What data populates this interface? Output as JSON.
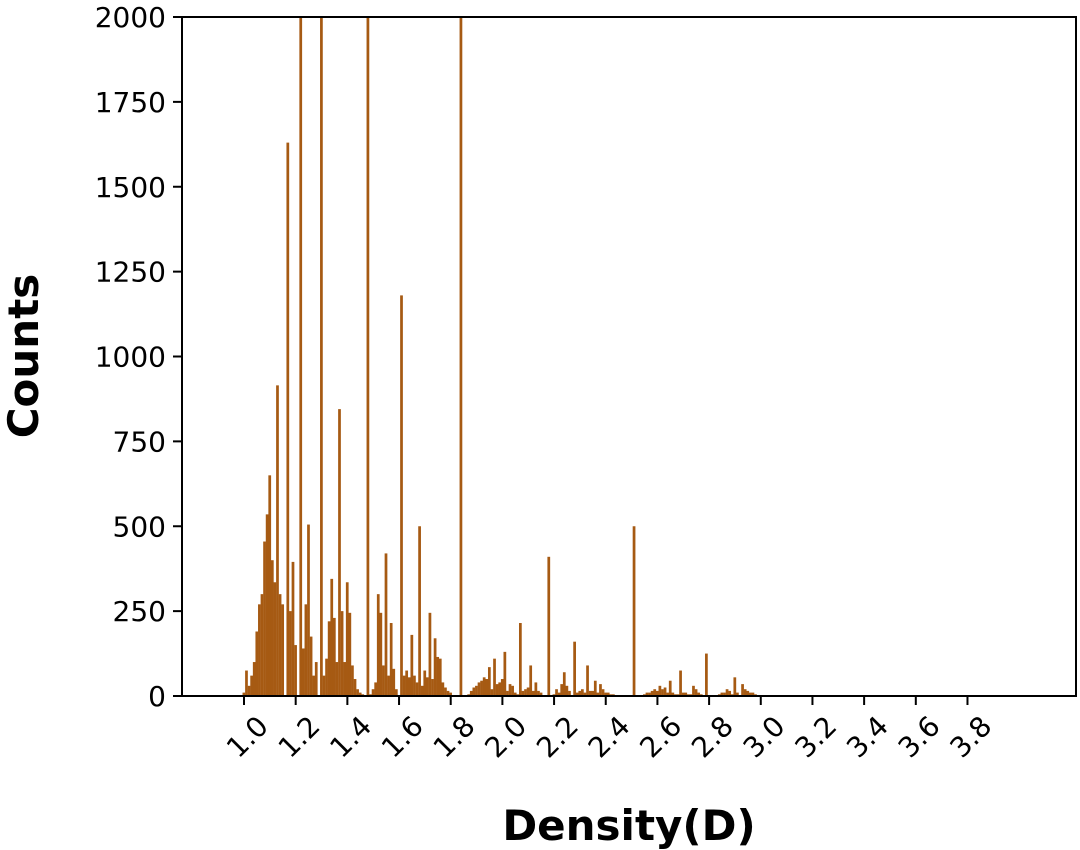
{
  "chart_data": {
    "type": "bar",
    "title": "",
    "xlabel": "Density(D)",
    "ylabel": "Counts",
    "xlim": [
      0.76,
      4.22
    ],
    "ylim": [
      0,
      2000
    ],
    "grid": false,
    "color": "#a65a13",
    "bin_width": 0.0115,
    "x_ticks": [
      1.0,
      1.2,
      1.4,
      1.6,
      1.8,
      2.0,
      2.2,
      2.4,
      2.6,
      2.8,
      3.0,
      3.2,
      3.4,
      3.6,
      3.8
    ],
    "x_tick_labels": [
      "1.0",
      "1.2",
      "1.4",
      "1.6",
      "1.8",
      "2.0",
      "2.2",
      "2.4",
      "2.6",
      "2.8",
      "3.0",
      "3.2",
      "3.4",
      "3.6",
      "3.8"
    ],
    "y_ticks": [
      0,
      250,
      500,
      750,
      1000,
      1250,
      1500,
      1750,
      2000
    ],
    "y_tick_labels": [
      "0",
      "250",
      "500",
      "750",
      "1000",
      "1250",
      "1500",
      "1750",
      "2000"
    ],
    "bins": [
      [
        1.0,
        10
      ],
      [
        1.01,
        75
      ],
      [
        1.02,
        30
      ],
      [
        1.03,
        60
      ],
      [
        1.04,
        100
      ],
      [
        1.05,
        190
      ],
      [
        1.06,
        270
      ],
      [
        1.07,
        300
      ],
      [
        1.08,
        455
      ],
      [
        1.09,
        535
      ],
      [
        1.1,
        650
      ],
      [
        1.11,
        400
      ],
      [
        1.12,
        335
      ],
      [
        1.13,
        915
      ],
      [
        1.14,
        300
      ],
      [
        1.15,
        270
      ],
      [
        1.17,
        1630
      ],
      [
        1.18,
        250
      ],
      [
        1.19,
        395
      ],
      [
        1.2,
        150
      ],
      [
        1.22,
        2000
      ],
      [
        1.23,
        140
      ],
      [
        1.24,
        270
      ],
      [
        1.25,
        505
      ],
      [
        1.26,
        175
      ],
      [
        1.27,
        60
      ],
      [
        1.28,
        100
      ],
      [
        1.3,
        2000
      ],
      [
        1.31,
        60
      ],
      [
        1.32,
        110
      ],
      [
        1.33,
        220
      ],
      [
        1.34,
        345
      ],
      [
        1.35,
        230
      ],
      [
        1.36,
        100
      ],
      [
        1.37,
        845
      ],
      [
        1.38,
        250
      ],
      [
        1.39,
        100
      ],
      [
        1.4,
        335
      ],
      [
        1.41,
        245
      ],
      [
        1.42,
        90
      ],
      [
        1.43,
        50
      ],
      [
        1.44,
        20
      ],
      [
        1.45,
        10
      ],
      [
        1.46,
        5
      ],
      [
        1.48,
        2000
      ],
      [
        1.49,
        5
      ],
      [
        1.5,
        20
      ],
      [
        1.51,
        40
      ],
      [
        1.52,
        300
      ],
      [
        1.53,
        245
      ],
      [
        1.54,
        90
      ],
      [
        1.55,
        420
      ],
      [
        1.56,
        60
      ],
      [
        1.57,
        215
      ],
      [
        1.58,
        80
      ],
      [
        1.59,
        20
      ],
      [
        1.61,
        1180
      ],
      [
        1.62,
        60
      ],
      [
        1.63,
        75
      ],
      [
        1.64,
        55
      ],
      [
        1.65,
        180
      ],
      [
        1.66,
        60
      ],
      [
        1.67,
        40
      ],
      [
        1.68,
        500
      ],
      [
        1.69,
        30
      ],
      [
        1.7,
        75
      ],
      [
        1.71,
        55
      ],
      [
        1.72,
        245
      ],
      [
        1.73,
        50
      ],
      [
        1.74,
        170
      ],
      [
        1.75,
        115
      ],
      [
        1.76,
        110
      ],
      [
        1.77,
        40
      ],
      [
        1.78,
        25
      ],
      [
        1.79,
        15
      ],
      [
        1.8,
        10
      ],
      [
        1.84,
        2000
      ],
      [
        1.87,
        5
      ],
      [
        1.88,
        15
      ],
      [
        1.89,
        25
      ],
      [
        1.9,
        30
      ],
      [
        1.91,
        40
      ],
      [
        1.92,
        45
      ],
      [
        1.93,
        55
      ],
      [
        1.94,
        50
      ],
      [
        1.95,
        85
      ],
      [
        1.96,
        20
      ],
      [
        1.97,
        110
      ],
      [
        1.98,
        35
      ],
      [
        1.99,
        40
      ],
      [
        2.0,
        50
      ],
      [
        2.01,
        130
      ],
      [
        2.02,
        15
      ],
      [
        2.03,
        35
      ],
      [
        2.04,
        30
      ],
      [
        2.05,
        10
      ],
      [
        2.06,
        5
      ],
      [
        2.07,
        215
      ],
      [
        2.08,
        15
      ],
      [
        2.09,
        20
      ],
      [
        2.1,
        25
      ],
      [
        2.11,
        90
      ],
      [
        2.12,
        15
      ],
      [
        2.13,
        40
      ],
      [
        2.14,
        15
      ],
      [
        2.15,
        10
      ],
      [
        2.18,
        410
      ],
      [
        2.2,
        5
      ],
      [
        2.21,
        20
      ],
      [
        2.22,
        10
      ],
      [
        2.23,
        35
      ],
      [
        2.24,
        70
      ],
      [
        2.25,
        30
      ],
      [
        2.26,
        15
      ],
      [
        2.28,
        160
      ],
      [
        2.29,
        10
      ],
      [
        2.3,
        15
      ],
      [
        2.31,
        20
      ],
      [
        2.32,
        10
      ],
      [
        2.33,
        90
      ],
      [
        2.34,
        15
      ],
      [
        2.35,
        15
      ],
      [
        2.36,
        45
      ],
      [
        2.37,
        10
      ],
      [
        2.38,
        35
      ],
      [
        2.39,
        20
      ],
      [
        2.4,
        10
      ],
      [
        2.41,
        10
      ],
      [
        2.42,
        5
      ],
      [
        2.43,
        5
      ],
      [
        2.51,
        500
      ],
      [
        2.55,
        5
      ],
      [
        2.56,
        10
      ],
      [
        2.57,
        10
      ],
      [
        2.58,
        15
      ],
      [
        2.59,
        20
      ],
      [
        2.6,
        15
      ],
      [
        2.61,
        30
      ],
      [
        2.62,
        20
      ],
      [
        2.63,
        25
      ],
      [
        2.64,
        10
      ],
      [
        2.65,
        45
      ],
      [
        2.66,
        10
      ],
      [
        2.67,
        5
      ],
      [
        2.68,
        5
      ],
      [
        2.69,
        75
      ],
      [
        2.7,
        10
      ],
      [
        2.71,
        10
      ],
      [
        2.72,
        5
      ],
      [
        2.73,
        5
      ],
      [
        2.74,
        30
      ],
      [
        2.75,
        20
      ],
      [
        2.76,
        10
      ],
      [
        2.77,
        5
      ],
      [
        2.79,
        125
      ],
      [
        2.84,
        5
      ],
      [
        2.85,
        10
      ],
      [
        2.86,
        10
      ],
      [
        2.87,
        20
      ],
      [
        2.88,
        15
      ],
      [
        2.89,
        5
      ],
      [
        2.9,
        55
      ],
      [
        2.91,
        10
      ],
      [
        2.93,
        35
      ],
      [
        2.94,
        20
      ],
      [
        2.95,
        15
      ],
      [
        2.96,
        10
      ],
      [
        2.97,
        10
      ],
      [
        2.98,
        5
      ]
    ]
  }
}
